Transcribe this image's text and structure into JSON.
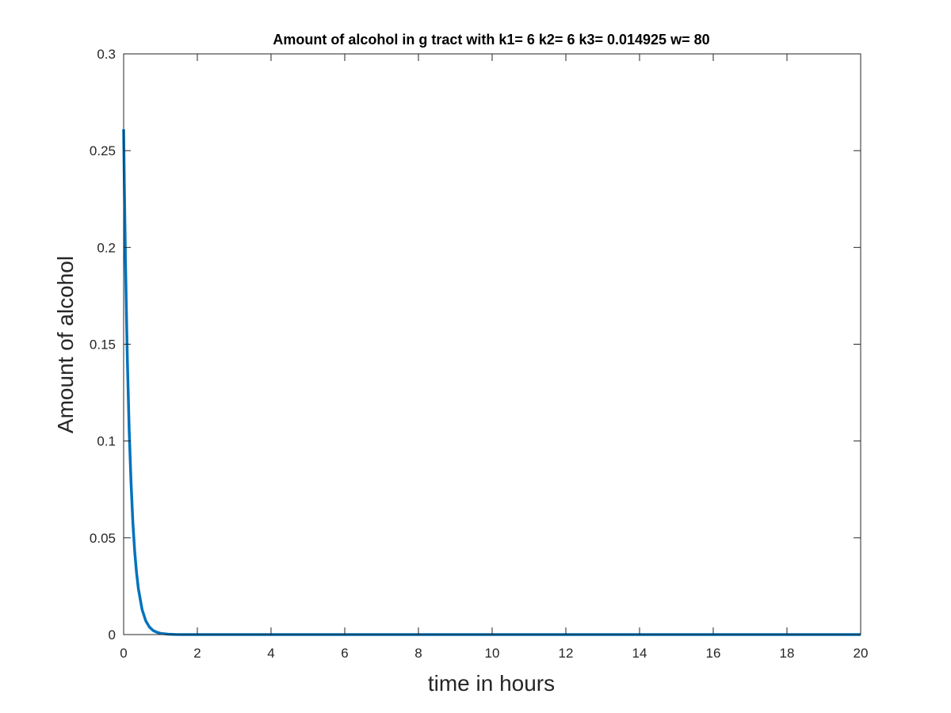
{
  "chart_data": {
    "type": "line",
    "title": "Amount of alcohol in g tract with k1= 6 k2= 6 k3= 0.014925 w= 80",
    "xlabel": "time in hours",
    "ylabel": "Amount of alcohol",
    "xlim": [
      0,
      20
    ],
    "ylim": [
      0,
      0.3
    ],
    "x_ticks": [
      0,
      2,
      4,
      6,
      8,
      10,
      12,
      14,
      16,
      18,
      20
    ],
    "x_tick_labels": [
      "0",
      "2",
      "4",
      "6",
      "8",
      "10",
      "12",
      "14",
      "16",
      "18",
      "20"
    ],
    "y_ticks": [
      0,
      0.05,
      0.1,
      0.15,
      0.2,
      0.25,
      0.3
    ],
    "y_tick_labels": [
      "0",
      "0.05",
      "0.1",
      "0.15",
      "0.2",
      "0.25",
      "0.3"
    ],
    "grid": false,
    "series_color": "#0072BD",
    "series": [
      {
        "x": [
          0,
          0.02,
          0.05,
          0.08,
          0.1,
          0.15,
          0.2,
          0.25,
          0.3,
          0.35,
          0.4,
          0.5,
          0.6,
          0.7,
          0.8,
          0.9,
          1.0,
          1.2,
          1.4,
          1.6,
          1.8,
          2.0,
          3,
          4,
          6,
          8,
          10,
          12,
          14,
          16,
          18,
          20
        ],
        "values": [
          0.261,
          0.231,
          0.193,
          0.162,
          0.143,
          0.106,
          0.079,
          0.058,
          0.043,
          0.032,
          0.0237,
          0.013,
          0.0071,
          0.0039,
          0.0021,
          0.0012,
          0.00064,
          0.00019,
          6e-05,
          2e-05,
          5e-06,
          2e-06,
          0,
          0,
          0,
          0,
          0,
          0,
          0,
          0,
          0,
          0
        ]
      }
    ]
  }
}
